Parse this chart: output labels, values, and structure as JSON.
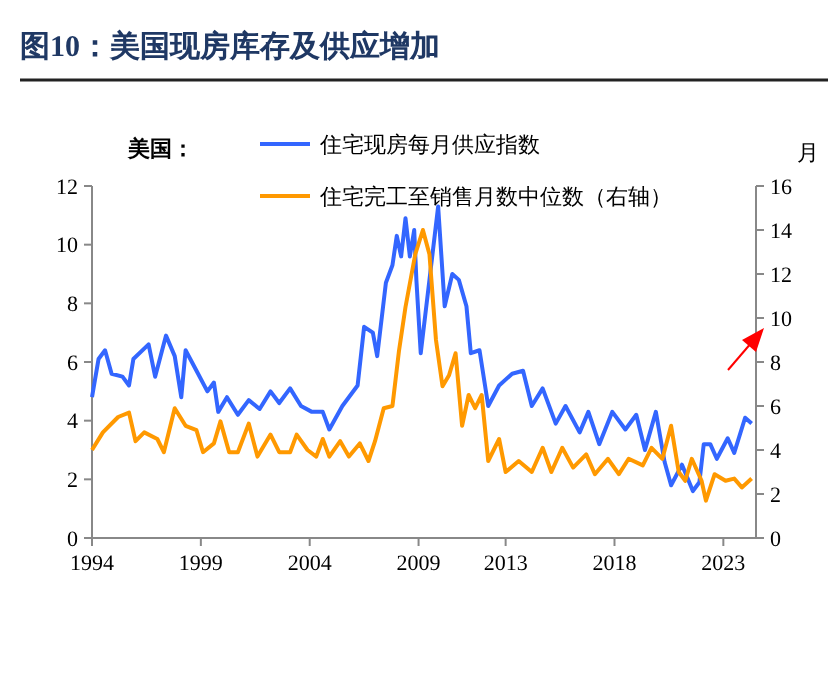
{
  "chart_data": {
    "type": "line",
    "title": "图10：美国现房库存及供应增加",
    "annotations": [
      "美国："
    ],
    "y2label": "月",
    "legend": "top",
    "grid": false,
    "xlim": [
      1994,
      2024.5
    ],
    "xticks": [
      1994,
      1999,
      2004,
      2009,
      2013,
      2018,
      2023
    ],
    "ylim": [
      0,
      12
    ],
    "yticks": [
      0,
      2,
      4,
      6,
      8,
      10,
      12
    ],
    "y2lim": [
      0,
      16
    ],
    "y2ticks": [
      0,
      2,
      4,
      6,
      8,
      10,
      12,
      14,
      16
    ],
    "series": [
      {
        "name": "住宅现房每月供应指数",
        "color": "#3366ff",
        "x": [
          1994.0,
          1994.3,
          1994.6,
          1994.9,
          1995.4,
          1995.7,
          1995.9,
          1996.6,
          1996.9,
          1997.4,
          1997.8,
          1998.1,
          1998.3,
          1998.8,
          1999.3,
          1999.6,
          1999.8,
          2000.2,
          2000.7,
          2001.2,
          2001.7,
          2002.2,
          2002.6,
          2003.1,
          2003.6,
          2004.1,
          2004.6,
          2004.9,
          2005.5,
          2006.2,
          2006.5,
          2006.9,
          2007.1,
          2007.5,
          2007.8,
          2008.0,
          2008.2,
          2008.4,
          2008.6,
          2008.8,
          2008.9,
          2009.1,
          2009.5,
          2009.9,
          2010.2,
          2010.55,
          2010.85,
          2011.2,
          2011.4,
          2011.8,
          2012.2,
          2012.7,
          2013.3,
          2013.8,
          2014.2,
          2014.7,
          2015.3,
          2015.75,
          2016.4,
          2016.8,
          2017.3,
          2017.9,
          2018.5,
          2019.0,
          2019.4,
          2019.9,
          2020.3,
          2020.6,
          2021.1,
          2021.6,
          2021.9,
          2022.1,
          2022.4,
          2022.7,
          2023.2,
          2023.5,
          2024.0,
          2024.3
        ],
        "values": [
          4.8,
          6.1,
          6.4,
          5.6,
          5.5,
          5.2,
          6.1,
          6.6,
          5.5,
          6.9,
          6.2,
          4.8,
          6.4,
          5.7,
          5.0,
          5.3,
          4.3,
          4.8,
          4.2,
          4.7,
          4.4,
          5.0,
          4.6,
          5.1,
          4.5,
          4.3,
          4.3,
          3.7,
          4.5,
          5.2,
          7.2,
          7.0,
          6.2,
          8.7,
          9.3,
          10.3,
          9.6,
          10.9,
          9.6,
          10.5,
          8.8,
          6.3,
          8.8,
          11.3,
          7.9,
          9.0,
          8.8,
          7.9,
          6.3,
          6.4,
          4.5,
          5.2,
          5.6,
          5.7,
          4.5,
          5.1,
          3.9,
          4.5,
          3.6,
          4.3,
          3.2,
          4.3,
          3.7,
          4.2,
          3.0,
          4.3,
          2.6,
          1.8,
          2.5,
          1.6,
          1.9,
          3.2,
          3.2,
          2.7,
          3.4,
          2.9,
          4.1,
          3.9
        ]
      },
      {
        "name": "住宅完工至销售月数中位数（右轴）",
        "color": "#ff9900",
        "axis": "y2",
        "x": [
          1994.0,
          1994.5,
          1995.2,
          1995.7,
          1996.0,
          1996.4,
          1997.0,
          1997.3,
          1997.8,
          1998.3,
          1998.8,
          1999.1,
          1999.6,
          1999.9,
          2000.3,
          2000.7,
          2001.2,
          2001.6,
          2002.2,
          2002.6,
          2003.1,
          2003.4,
          2003.9,
          2004.3,
          2004.6,
          2004.9,
          2005.4,
          2005.8,
          2006.3,
          2006.7,
          2007.0,
          2007.4,
          2007.8,
          2008.1,
          2008.4,
          2008.85,
          2009.2,
          2009.5,
          2009.8,
          2010.1,
          2010.4,
          2010.7,
          2011.0,
          2011.3,
          2011.6,
          2011.9,
          2012.2,
          2012.7,
          2013.0,
          2013.6,
          2014.2,
          2014.7,
          2015.1,
          2015.6,
          2016.1,
          2016.7,
          2017.1,
          2017.7,
          2018.2,
          2018.65,
          2019.3,
          2019.7,
          2020.2,
          2020.6,
          2020.95,
          2021.25,
          2021.55,
          2022.0,
          2022.2,
          2022.6,
          2023.1,
          2023.5,
          2023.85,
          2024.3
        ],
        "values": [
          4.0,
          4.8,
          5.5,
          5.7,
          4.4,
          4.8,
          4.5,
          3.9,
          5.9,
          5.1,
          4.9,
          3.9,
          4.3,
          5.3,
          3.9,
          3.9,
          5.2,
          3.7,
          4.7,
          3.9,
          3.9,
          4.7,
          4.0,
          3.7,
          4.5,
          3.7,
          4.4,
          3.7,
          4.3,
          3.5,
          4.4,
          5.9,
          6.0,
          8.5,
          10.5,
          12.9,
          14.0,
          12.9,
          9.0,
          6.9,
          7.4,
          8.4,
          5.1,
          6.5,
          5.9,
          6.5,
          3.5,
          4.5,
          3.0,
          3.5,
          3.0,
          4.1,
          3.0,
          4.1,
          3.2,
          3.8,
          2.9,
          3.6,
          2.9,
          3.6,
          3.3,
          4.1,
          3.6,
          5.1,
          3.0,
          2.6,
          3.6,
          2.6,
          1.7,
          2.9,
          2.6,
          2.7,
          2.3,
          2.7
        ]
      }
    ]
  }
}
